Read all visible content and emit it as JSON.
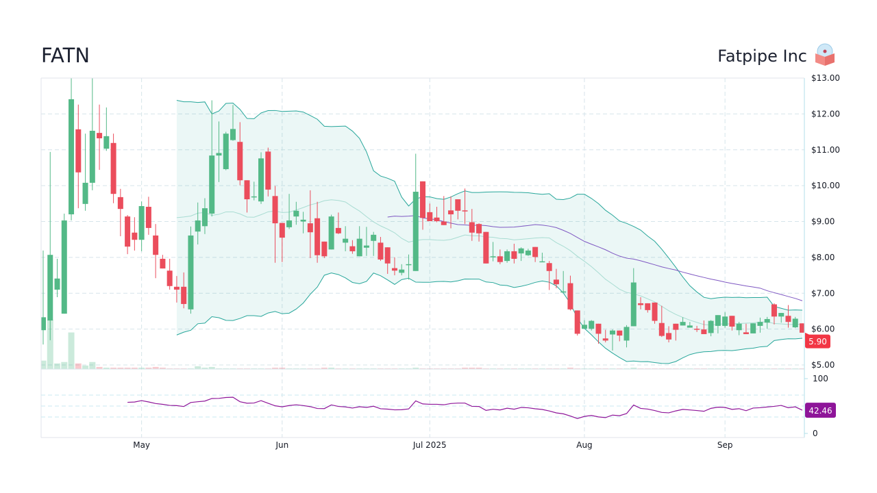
{
  "header": {
    "ticker": "FATN",
    "company": "Fatpipe Inc",
    "logo_icon": "box-with-disc-icon"
  },
  "colors": {
    "up": "#53b987",
    "down": "#eb4d5c",
    "band": "#26a69a",
    "sma50": "#7e57c2",
    "rsi": "#8e1599",
    "last_price_bg": "#f23645"
  },
  "chart_data": {
    "type": "candlestick",
    "price_axis": {
      "ylim": [
        5,
        13
      ],
      "ticks": [
        "$5.00",
        "$6.00",
        "$7.00",
        "$8.00",
        "$9.00",
        "$10.00",
        "$11.00",
        "$12.00",
        "$13.00"
      ],
      "tick_values": [
        5,
        6,
        7,
        8,
        9,
        10,
        11,
        12,
        13
      ]
    },
    "x_ticks": [
      {
        "label": "May",
        "index": 14
      },
      {
        "label": "Jun",
        "index": 34
      },
      {
        "label": "Jul 2025",
        "index": 55
      },
      {
        "label": "Aug",
        "index": 77
      },
      {
        "label": "Sep",
        "index": 97
      }
    ],
    "grid": true,
    "last_price": "5.90",
    "indicators": {
      "bollinger_period": 20,
      "bollinger_std": 2,
      "sma_period": 50,
      "rsi_period": 14
    },
    "rsi_axis": {
      "ylim": [
        0,
        100
      ],
      "ticks": [
        "0",
        "100"
      ],
      "levels": [
        30,
        50,
        70
      ]
    },
    "rsi_last": "42.46",
    "ohlc": [
      [
        5.97,
        8.19,
        5.57,
        6.33
      ],
      [
        6.24,
        10.94,
        5.69,
        8.07
      ],
      [
        7.1,
        7.96,
        6.89,
        7.41
      ],
      [
        6.43,
        9.22,
        6.43,
        9.03
      ],
      [
        9.2,
        13.1,
        9.03,
        12.41
      ],
      [
        11.57,
        12.26,
        9.37,
        10.37
      ],
      [
        9.49,
        11.45,
        9.3,
        10.08
      ],
      [
        10.08,
        13.1,
        9.87,
        11.53
      ],
      [
        11.47,
        12.26,
        10.44,
        11.32
      ],
      [
        11.03,
        12.18,
        10.97,
        11.38
      ],
      [
        11.19,
        11.45,
        9.51,
        9.77
      ],
      [
        9.68,
        9.91,
        8.59,
        9.35
      ],
      [
        9.14,
        9.18,
        8.09,
        8.3
      ],
      [
        8.69,
        9.12,
        8.19,
        8.49
      ],
      [
        8.49,
        9.56,
        8.17,
        9.43
      ],
      [
        9.41,
        9.69,
        8.63,
        8.82
      ],
      [
        8.61,
        8.93,
        7.42,
        8.07
      ],
      [
        7.96,
        8.07,
        7.69,
        7.69
      ],
      [
        7.63,
        7.96,
        7.1,
        7.2
      ],
      [
        7.18,
        7.48,
        6.74,
        7.1
      ],
      [
        7.18,
        7.58,
        6.58,
        6.7
      ],
      [
        6.55,
        8.86,
        6.43,
        8.61
      ],
      [
        8.72,
        9.53,
        8.36,
        9.03
      ],
      [
        8.87,
        9.65,
        8.65,
        9.37
      ],
      [
        9.22,
        12.38,
        9.14,
        10.84
      ],
      [
        10.84,
        11.79,
        10.1,
        10.91
      ],
      [
        10.46,
        11.5,
        10.43,
        11.45
      ],
      [
        11.27,
        12.25,
        11.25,
        11.58
      ],
      [
        11.22,
        11.77,
        10.01,
        10.15
      ],
      [
        10.15,
        10.15,
        9.25,
        9.62
      ],
      [
        9.68,
        10.11,
        9.59,
        9.7
      ],
      [
        9.56,
        10.93,
        9.49,
        10.76
      ],
      [
        10.95,
        11.06,
        9.7,
        9.89
      ],
      [
        9.71,
        9.99,
        7.85,
        8.95
      ],
      [
        8.96,
        8.96,
        7.87,
        8.55
      ],
      [
        8.84,
        9.77,
        8.79,
        9.03
      ],
      [
        9.14,
        9.55,
        8.91,
        9.3
      ],
      [
        9.0,
        9.27,
        8.67,
        9.05
      ],
      [
        8.95,
        9.87,
        7.98,
        8.7
      ],
      [
        9.09,
        9.55,
        7.85,
        8.06
      ],
      [
        8.44,
        8.44,
        7.98,
        8.03
      ],
      [
        8.22,
        9.19,
        8.22,
        9.14
      ],
      [
        8.82,
        9.25,
        8.65,
        8.67
      ],
      [
        8.41,
        8.87,
        8.17,
        8.52
      ],
      [
        8.31,
        8.48,
        8.1,
        8.17
      ],
      [
        8.03,
        8.87,
        8.03,
        8.52
      ],
      [
        8.27,
        8.85,
        8.04,
        8.33
      ],
      [
        8.46,
        8.71,
        8.04,
        8.63
      ],
      [
        8.41,
        8.57,
        7.9,
        7.94
      ],
      [
        8.28,
        8.28,
        7.54,
        7.83
      ],
      [
        7.7,
        8.0,
        7.5,
        7.63
      ],
      [
        7.57,
        7.81,
        7.5,
        7.66
      ],
      [
        7.79,
        8.08,
        7.38,
        7.81
      ],
      [
        7.62,
        10.89,
        7.62,
        9.83
      ],
      [
        10.12,
        10.12,
        8.77,
        9.1
      ],
      [
        9.26,
        9.5,
        9.01,
        9.01
      ],
      [
        9.11,
        9.41,
        8.98,
        9.01
      ],
      [
        9.0,
        9.71,
        8.9,
        8.9
      ],
      [
        9.31,
        9.7,
        8.81,
        9.2
      ],
      [
        9.62,
        9.62,
        9.06,
        9.3
      ],
      [
        9.31,
        9.92,
        8.93,
        9.3
      ],
      [
        8.98,
        9.35,
        8.46,
        8.69
      ],
      [
        8.93,
        8.95,
        8.44,
        8.67
      ],
      [
        8.71,
        8.71,
        7.83,
        7.83
      ],
      [
        8.01,
        8.43,
        7.89,
        8.03
      ],
      [
        8.03,
        8.22,
        7.81,
        7.87
      ],
      [
        7.9,
        8.22,
        7.85,
        8.17
      ],
      [
        8.17,
        8.38,
        7.83,
        7.96
      ],
      [
        8.11,
        8.28,
        7.9,
        8.25
      ],
      [
        8.06,
        8.24,
        8.04,
        8.19
      ],
      [
        8.29,
        8.29,
        7.87,
        8.01
      ],
      [
        7.87,
        8.13,
        7.87,
        7.89
      ],
      [
        7.84,
        7.9,
        7.09,
        7.62
      ],
      [
        7.38,
        7.68,
        7.14,
        7.25
      ],
      [
        7.02,
        7.62,
        7.02,
        7.05
      ],
      [
        7.28,
        7.49,
        6.52,
        6.55
      ],
      [
        6.52,
        6.52,
        5.82,
        5.87
      ],
      [
        6.01,
        6.25,
        6.01,
        6.12
      ],
      [
        6.01,
        6.25,
        5.96,
        6.23
      ],
      [
        6.15,
        6.15,
        5.59,
        5.87
      ],
      [
        5.74,
        5.98,
        5.63,
        5.68
      ],
      [
        5.85,
        5.99,
        5.4,
        5.96
      ],
      [
        5.96,
        5.96,
        5.66,
        5.82
      ],
      [
        5.68,
        6.11,
        5.49,
        6.06
      ],
      [
        6.08,
        7.7,
        6.08,
        7.3
      ],
      [
        6.72,
        6.89,
        6.55,
        6.67
      ],
      [
        6.72,
        6.72,
        6.46,
        6.53
      ],
      [
        6.74,
        6.74,
        6.15,
        6.23
      ],
      [
        6.17,
        6.65,
        5.78,
        5.81
      ],
      [
        5.89,
        6.08,
        5.63,
        5.71
      ],
      [
        6.15,
        6.15,
        5.68,
        5.98
      ],
      [
        6.1,
        6.33,
        6.1,
        6.2
      ],
      [
        6.04,
        6.2,
        6.04,
        6.1
      ],
      [
        6.01,
        6.09,
        5.92,
        5.99
      ],
      [
        5.99,
        6.24,
        5.86,
        5.86
      ],
      [
        5.89,
        6.25,
        5.8,
        6.23
      ],
      [
        6.09,
        6.39,
        5.88,
        6.39
      ],
      [
        6.09,
        6.47,
        6.04,
        6.35
      ],
      [
        6.37,
        6.37,
        5.96,
        6.07
      ],
      [
        5.97,
        6.2,
        5.83,
        6.15
      ],
      [
        5.91,
        6.15,
        5.86,
        5.86
      ],
      [
        5.88,
        6.16,
        5.88,
        6.16
      ],
      [
        6.09,
        6.32,
        5.9,
        6.2
      ],
      [
        6.18,
        6.34,
        6.01,
        6.28
      ],
      [
        6.69,
        6.72,
        6.13,
        6.35
      ],
      [
        6.35,
        6.45,
        6.18,
        6.45
      ],
      [
        6.37,
        6.67,
        6.04,
        6.2
      ],
      [
        6.05,
        6.34,
        6.03,
        6.29
      ],
      [
        6.16,
        6.16,
        5.9,
        5.9
      ]
    ],
    "volume": [
      12,
      70,
      8,
      10,
      52,
      8,
      5,
      10,
      3,
      2,
      2,
      2,
      2,
      2,
      2,
      2,
      3,
      2,
      1,
      1,
      1,
      1,
      4,
      2,
      3,
      1,
      1,
      1,
      1,
      1,
      1,
      1,
      1,
      2,
      2,
      1,
      1,
      1,
      1,
      1,
      2,
      2,
      1,
      1,
      1,
      1,
      1,
      1,
      1,
      1,
      1,
      1,
      1,
      2,
      1,
      1,
      1,
      1,
      1,
      1,
      2,
      2,
      2,
      1,
      1,
      1,
      1,
      1,
      1,
      1,
      1,
      1,
      1,
      1,
      1,
      2,
      1,
      1,
      1,
      1,
      1,
      1,
      1,
      1,
      2,
      1,
      1,
      1,
      1,
      1,
      1,
      1,
      1,
      1,
      1,
      1,
      1,
      1,
      1,
      1,
      1,
      1,
      1,
      1,
      1,
      1,
      1,
      1,
      1
    ]
  }
}
